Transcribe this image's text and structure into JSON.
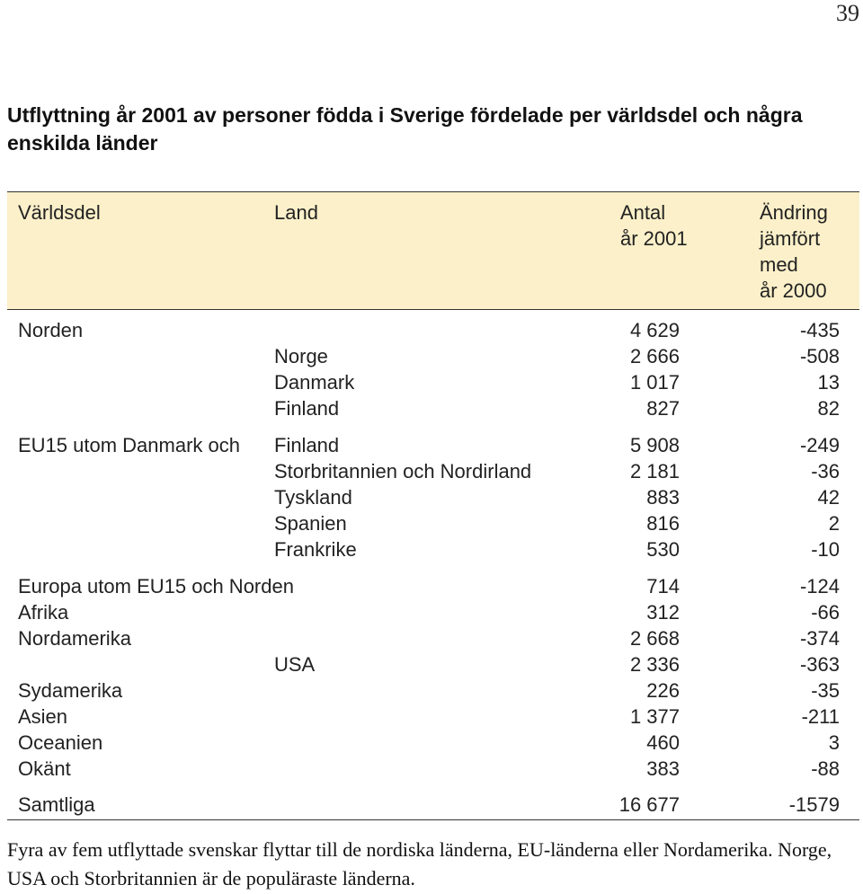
{
  "page": {
    "number": "39"
  },
  "title": "Utflyttning år 2001 av personer födda i Sverige fördelade per världsdel och några enskilda länder",
  "table": {
    "headers": {
      "region": "Världsdel",
      "country": "Land",
      "count_line1": "Antal",
      "count_line2": "år 2001",
      "change_line1": "Ändring",
      "change_line2": "jämfört",
      "change_line3": "med",
      "change_line4": "år 2000"
    },
    "rows": [
      {
        "region": "Norden",
        "country": "",
        "count": "4 629",
        "change": "-435"
      },
      {
        "region": "",
        "country": "Norge",
        "count": "2 666",
        "change": "-508"
      },
      {
        "region": "",
        "country": "Danmark",
        "count": "1 017",
        "change": "13"
      },
      {
        "region": "",
        "country": "Finland",
        "count": "827",
        "change": "82"
      },
      {
        "region": "EU15 utom Danmark och",
        "country": "Finland",
        "count": "5 908",
        "change": "-249"
      },
      {
        "region": "",
        "country": "Storbritannien och Nordirland",
        "count": "2 181",
        "change": "-36"
      },
      {
        "region": "",
        "country": "Tyskland",
        "count": "883",
        "change": "42"
      },
      {
        "region": "",
        "country": "Spanien",
        "count": "816",
        "change": "2"
      },
      {
        "region": "",
        "country": "Frankrike",
        "count": "530",
        "change": "-10"
      },
      {
        "region": "Europa utom EU15 och Norden",
        "country": "",
        "count": "714",
        "change": "-124"
      },
      {
        "region": "Afrika",
        "country": "",
        "count": "312",
        "change": "-66"
      },
      {
        "region": "Nordamerika",
        "country": "",
        "count": "2 668",
        "change": "-374"
      },
      {
        "region": "",
        "country": "USA",
        "count": "2 336",
        "change": "-363"
      },
      {
        "region": "Sydamerika",
        "country": "",
        "count": "226",
        "change": "-35"
      },
      {
        "region": "Asien",
        "country": "",
        "count": "1 377",
        "change": "-211"
      },
      {
        "region": "Oceanien",
        "country": "",
        "count": "460",
        "change": "3"
      },
      {
        "region": "Okänt",
        "country": "",
        "count": "383",
        "change": "-88"
      },
      {
        "region": "Samtliga",
        "country": "",
        "count": "16 677",
        "change": "-1579"
      }
    ]
  },
  "caption": "Fyra av fem utflyttade svenskar flyttar till de nordiska länderna, EU-länderna eller Nordamerika. Norge, USA och Storbritannien är de populäraste länderna."
}
